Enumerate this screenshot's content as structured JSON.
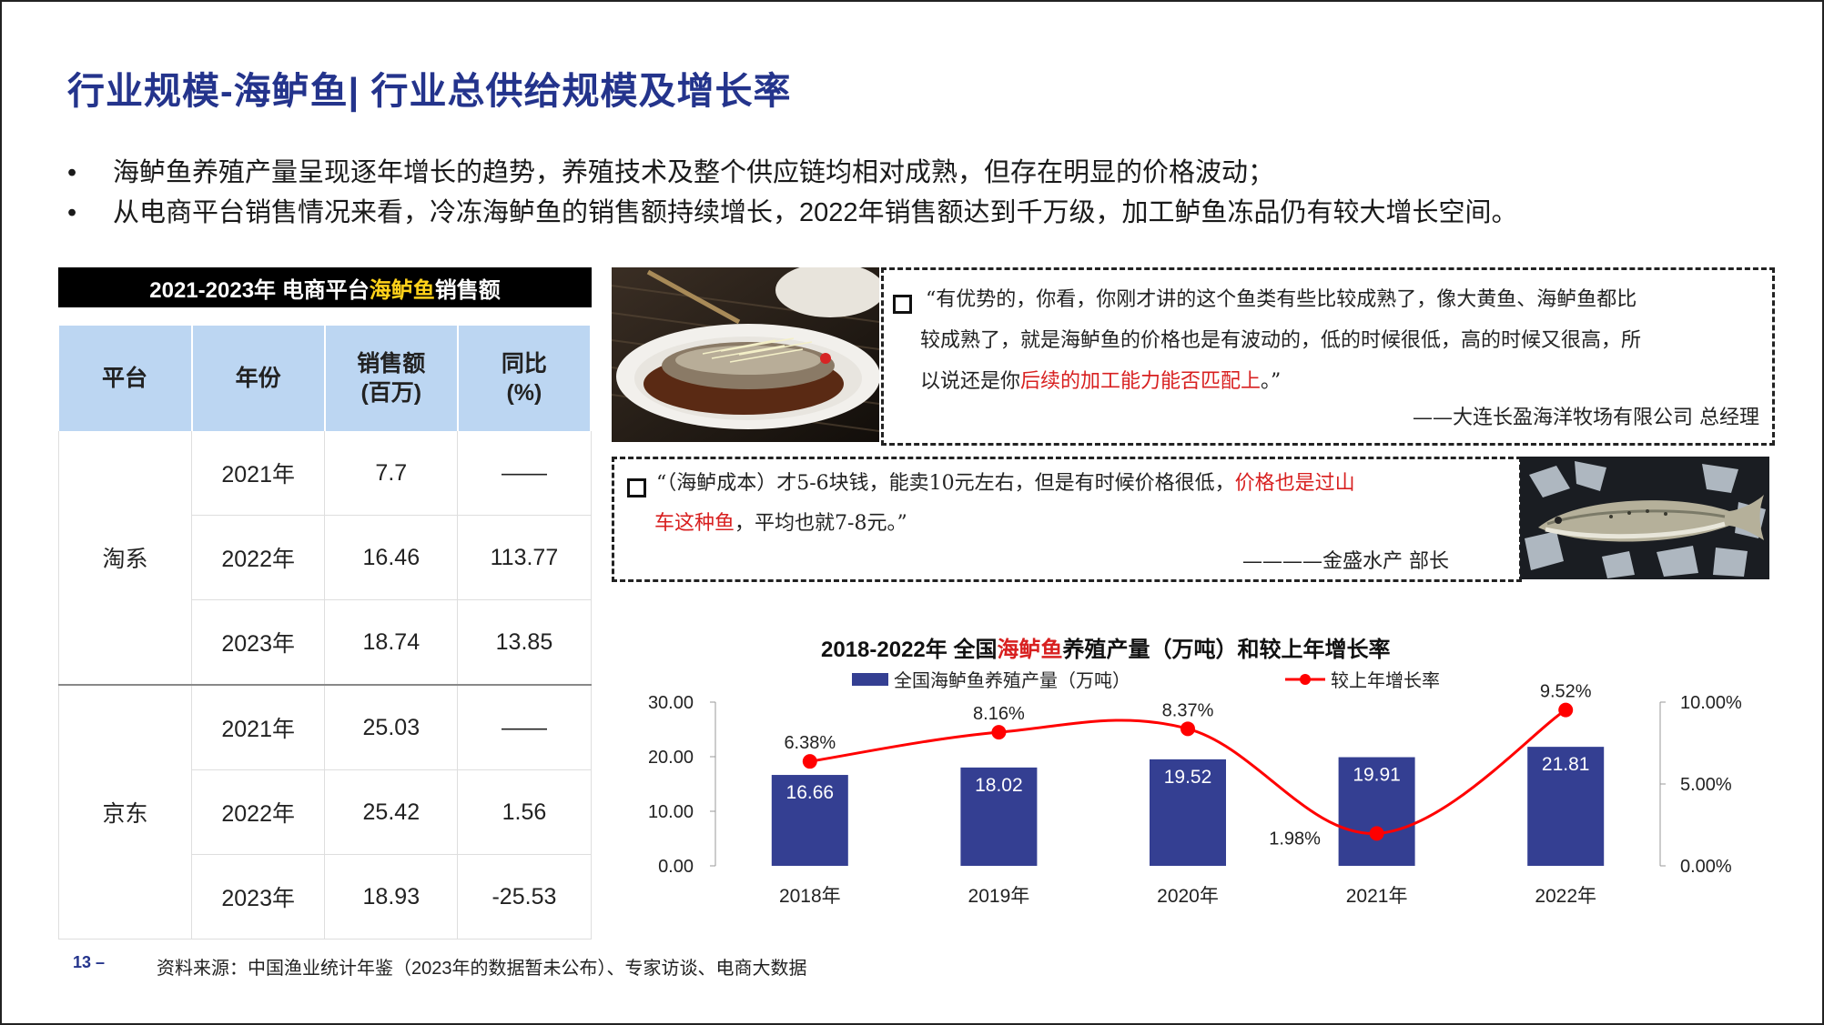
{
  "title": "行业规模-海鲈鱼| 行业总供给规模及增长率",
  "bullets": [
    "海鲈鱼养殖产量呈现逐年增长的趋势，养殖技术及整个供应链均相对成熟，但存在明显的价格波动；",
    "从电商平台销售情况来看，冷冻海鲈鱼的销售额持续增长，2022年销售额达到千万级，加工鲈鱼冻品仍有较大增长空间。"
  ],
  "bullet_mark": "•",
  "table": {
    "title_prefix": "2021-2023年 电商平台",
    "title_highlight": "海鲈鱼",
    "title_suffix": "销售额",
    "headers": [
      "平台",
      "年份",
      "销售额\n(百万)",
      "同比\n(%)"
    ],
    "groups": [
      {
        "platform": "淘系",
        "rows": [
          {
            "year": "2021年",
            "sales": "7.7",
            "yoy": "——"
          },
          {
            "year": "2022年",
            "sales": "16.46",
            "yoy": "113.77"
          },
          {
            "year": "2023年",
            "sales": "18.74",
            "yoy": "13.85"
          }
        ]
      },
      {
        "platform": "京东",
        "rows": [
          {
            "year": "2021年",
            "sales": "25.03",
            "yoy": "——"
          },
          {
            "year": "2022年",
            "sales": "25.42",
            "yoy": "1.56"
          },
          {
            "year": "2023年",
            "sales": "18.93",
            "yoy": "-25.53"
          }
        ]
      }
    ]
  },
  "quote1": {
    "line1": "“有优势的，你看，你刚才讲的这个鱼类有些比较成熟了，像大黄鱼、海鲈鱼都比",
    "line2": "较成熟了，就是海鲈鱼的价格也是有波动的，低的时候很低，高的时候又很高，所",
    "line3_plain": "以说还是你",
    "line3_red": "后续的加工能力能否匹配上",
    "line3_end": "。”",
    "attribution": "——大连长盈海洋牧场有限公司 总经理"
  },
  "quote2": {
    "line1_plain": "“（海鲈成本）才5-6块钱，能卖10元左右，但是有时候价格很低，",
    "line1_red": "价格也是过山",
    "line2_red": "车这种鱼",
    "line2_plain": "，平均也就7-8元。”",
    "attribution": "————金盛水产 部长"
  },
  "chart_title": {
    "prefix": "2018-2022年 全国",
    "highlight": "海鲈鱼",
    "suffix": "养殖产量（万吨）和较上年增长率"
  },
  "chart_data": {
    "type": "bar+line",
    "categories": [
      "2018年",
      "2019年",
      "2020年",
      "2021年",
      "2022年"
    ],
    "series": [
      {
        "name": "全国海鲈鱼养殖产量（万吨）",
        "type": "bar",
        "axis": "left",
        "values": [
          16.66,
          18.02,
          19.52,
          19.91,
          21.81
        ],
        "labels": [
          "16.66",
          "18.02",
          "19.52",
          "19.91",
          "21.81"
        ]
      },
      {
        "name": "较上年增长率",
        "type": "line",
        "axis": "right",
        "values": [
          6.38,
          8.16,
          8.37,
          1.98,
          9.52
        ],
        "labels": [
          "6.38%",
          "8.16%",
          "8.37%",
          "1.98%",
          "9.52%"
        ]
      }
    ],
    "y_left": {
      "range": [
        0,
        30
      ],
      "ticks": [
        "0.00",
        "10.00",
        "20.00",
        "30.00"
      ]
    },
    "y_right": {
      "range": [
        0,
        10
      ],
      "ticks": [
        "0.00%",
        "5.00%",
        "10.00%"
      ]
    },
    "colors": {
      "bar": "#343f92",
      "line": "#ff0000"
    },
    "legend": "top"
  },
  "footer": {
    "page": "13 –",
    "source": "资料来源：中国渔业统计年鉴（2023年的数据暂未公布）、专家访谈、电商大数据"
  },
  "colors": {
    "title": "#24348c",
    "accent_red": "#d82020",
    "header_fill": "#bcd6f2"
  },
  "icons": [
    "square-bullet-icon"
  ]
}
